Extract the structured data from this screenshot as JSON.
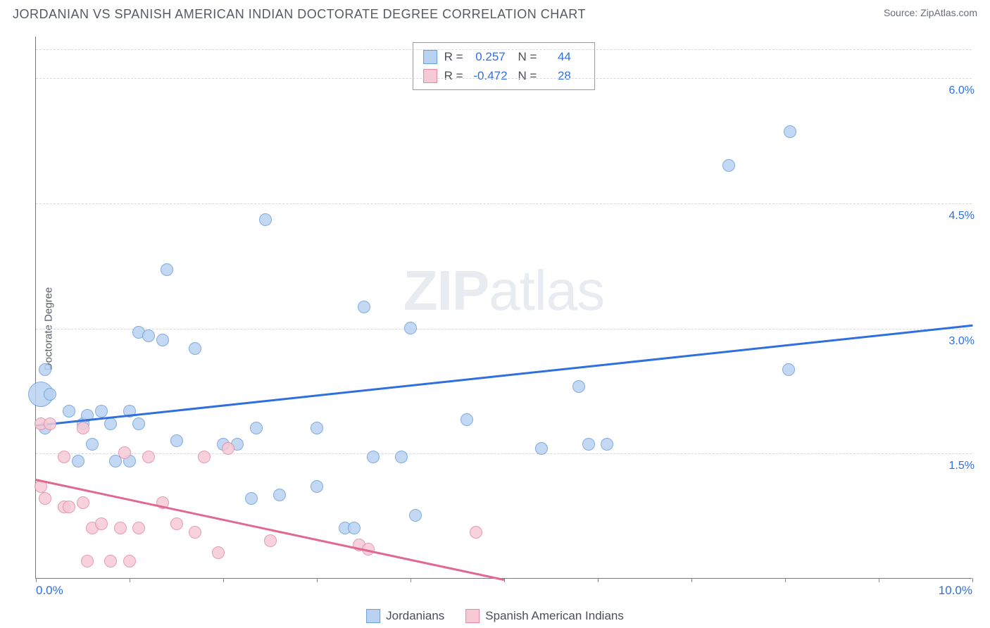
{
  "title": "JORDANIAN VS SPANISH AMERICAN INDIAN DOCTORATE DEGREE CORRELATION CHART",
  "source_prefix": "Source: ",
  "source_name": "ZipAtlas.com",
  "y_axis_label": "Doctorate Degree",
  "watermark_bold": "ZIP",
  "watermark_rest": "atlas",
  "chart": {
    "type": "scatter",
    "xlim": [
      0,
      10
    ],
    "ylim": [
      0,
      6.5
    ],
    "x_ticks": [
      0,
      1,
      2,
      3,
      4,
      5,
      6,
      7,
      8,
      9,
      10
    ],
    "x_tick_labels": {
      "0": "0.0%",
      "10": "10.0%"
    },
    "y_gridlines": [
      1.5,
      3.0,
      4.5,
      6.0
    ],
    "y_tick_labels": {
      "1.5": "1.5%",
      "3.0": "3.0%",
      "4.5": "4.5%",
      "6.0": "6.0%"
    },
    "background_color": "#ffffff",
    "grid_color": "#d6d8dd",
    "axis_color": "#777777",
    "series": [
      {
        "key": "jordanians",
        "label": "Jordanians",
        "fill_color": "#b9d2f1",
        "stroke_color": "#6a9edb",
        "trend_color": "#2f6fe0",
        "R_label": "R =",
        "R_value": "0.257",
        "N_label": "N =",
        "N_value": "44",
        "marker_radius": 9,
        "trend": {
          "x1": 0.0,
          "y1": 1.85,
          "x2": 10.0,
          "y2": 3.05
        },
        "points": [
          {
            "x": 0.05,
            "y": 2.2,
            "r": 18
          },
          {
            "x": 0.1,
            "y": 2.5
          },
          {
            "x": 0.1,
            "y": 1.8
          },
          {
            "x": 0.15,
            "y": 2.2
          },
          {
            "x": 0.35,
            "y": 2.0
          },
          {
            "x": 0.45,
            "y": 1.4
          },
          {
            "x": 0.5,
            "y": 1.85
          },
          {
            "x": 0.55,
            "y": 1.95
          },
          {
            "x": 0.6,
            "y": 1.6
          },
          {
            "x": 0.7,
            "y": 2.0
          },
          {
            "x": 0.8,
            "y": 1.85
          },
          {
            "x": 0.85,
            "y": 1.4
          },
          {
            "x": 1.0,
            "y": 2.0
          },
          {
            "x": 1.0,
            "y": 1.4
          },
          {
            "x": 1.1,
            "y": 2.95
          },
          {
            "x": 1.1,
            "y": 1.85
          },
          {
            "x": 1.2,
            "y": 2.9
          },
          {
            "x": 1.4,
            "y": 3.7
          },
          {
            "x": 1.35,
            "y": 2.85
          },
          {
            "x": 1.5,
            "y": 1.65
          },
          {
            "x": 1.7,
            "y": 2.75
          },
          {
            "x": 2.0,
            "y": 1.6
          },
          {
            "x": 2.15,
            "y": 1.6
          },
          {
            "x": 2.3,
            "y": 0.95
          },
          {
            "x": 2.35,
            "y": 1.8
          },
          {
            "x": 2.45,
            "y": 4.3
          },
          {
            "x": 2.6,
            "y": 1.0
          },
          {
            "x": 3.0,
            "y": 1.8
          },
          {
            "x": 3.3,
            "y": 0.6
          },
          {
            "x": 3.4,
            "y": 0.6
          },
          {
            "x": 3.5,
            "y": 3.25
          },
          {
            "x": 3.6,
            "y": 1.45
          },
          {
            "x": 3.9,
            "y": 1.45
          },
          {
            "x": 4.0,
            "y": 3.0
          },
          {
            "x": 4.05,
            "y": 0.75
          },
          {
            "x": 4.6,
            "y": 1.9
          },
          {
            "x": 5.4,
            "y": 1.55
          },
          {
            "x": 5.8,
            "y": 2.3
          },
          {
            "x": 5.9,
            "y": 1.6
          },
          {
            "x": 7.4,
            "y": 4.95
          },
          {
            "x": 8.05,
            "y": 5.35
          },
          {
            "x": 8.04,
            "y": 2.5
          },
          {
            "x": 6.1,
            "y": 1.6
          },
          {
            "x": 3.0,
            "y": 1.1
          }
        ]
      },
      {
        "key": "spanish",
        "label": "Spanish American Indians",
        "fill_color": "#f6c9d5",
        "stroke_color": "#e58aa4",
        "trend_color": "#e06a8e",
        "R_label": "R =",
        "R_value": "-0.472",
        "N_label": "N =",
        "N_value": "28",
        "marker_radius": 9,
        "trend": {
          "x1": 0.0,
          "y1": 1.2,
          "x2": 5.0,
          "y2": 0.0
        },
        "points": [
          {
            "x": 0.05,
            "y": 1.85
          },
          {
            "x": 0.05,
            "y": 1.1
          },
          {
            "x": 0.1,
            "y": 0.95
          },
          {
            "x": 0.15,
            "y": 1.85
          },
          {
            "x": 0.3,
            "y": 0.85
          },
          {
            "x": 0.3,
            "y": 1.45
          },
          {
            "x": 0.35,
            "y": 0.85
          },
          {
            "x": 0.5,
            "y": 1.8
          },
          {
            "x": 0.5,
            "y": 0.9
          },
          {
            "x": 0.55,
            "y": 0.2
          },
          {
            "x": 0.6,
            "y": 0.6
          },
          {
            "x": 0.7,
            "y": 0.65
          },
          {
            "x": 0.8,
            "y": 0.2
          },
          {
            "x": 0.9,
            "y": 0.6
          },
          {
            "x": 0.95,
            "y": 1.5
          },
          {
            "x": 1.0,
            "y": 0.2
          },
          {
            "x": 1.1,
            "y": 0.6
          },
          {
            "x": 1.2,
            "y": 1.45
          },
          {
            "x": 1.35,
            "y": 0.9
          },
          {
            "x": 1.5,
            "y": 0.65
          },
          {
            "x": 1.7,
            "y": 0.55
          },
          {
            "x": 1.8,
            "y": 1.45
          },
          {
            "x": 1.95,
            "y": 0.3
          },
          {
            "x": 2.05,
            "y": 1.55
          },
          {
            "x": 2.5,
            "y": 0.45
          },
          {
            "x": 3.45,
            "y": 0.4
          },
          {
            "x": 3.55,
            "y": 0.35
          },
          {
            "x": 4.7,
            "y": 0.55
          }
        ]
      }
    ]
  },
  "legend_bottom": [
    {
      "swatch_fill": "#b9d2f1",
      "swatch_stroke": "#6a9edb",
      "label": "Jordanians"
    },
    {
      "swatch_fill": "#f6c9d5",
      "swatch_stroke": "#e58aa4",
      "label": "Spanish American Indians"
    }
  ]
}
